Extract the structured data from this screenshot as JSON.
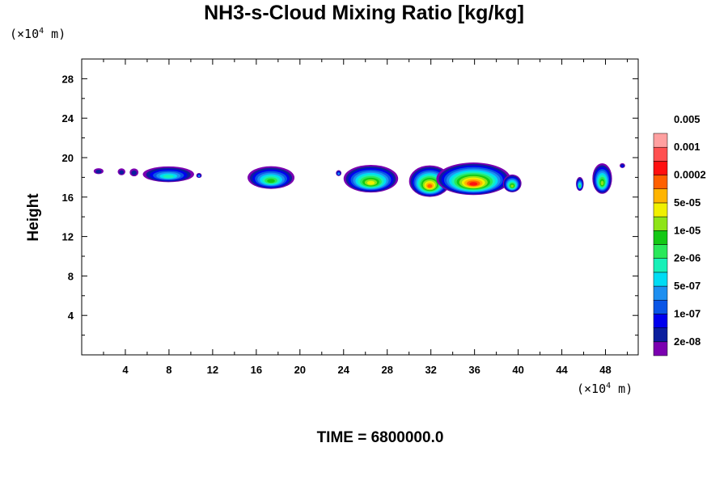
{
  "chart_data": {
    "type": "heatmap",
    "title": "NH3-s-Cloud Mixing Ratio [kg/kg]",
    "ylabel": "Height",
    "xlabel": "",
    "x_unit": "(×10⁴ m)",
    "y_unit": "(×10⁴ m)",
    "x_unit_parts": {
      "pre": "(×10",
      "exp": "4",
      "post": " m)"
    },
    "y_unit_parts": {
      "pre": "(×10",
      "exp": "4",
      "post": " m)"
    },
    "xlim": [
      0,
      51
    ],
    "ylim": [
      0,
      30
    ],
    "xticks": [
      4,
      8,
      12,
      16,
      20,
      24,
      28,
      32,
      36,
      40,
      44,
      48
    ],
    "yticks": [
      4,
      8,
      12,
      16,
      20,
      24,
      28
    ],
    "time_label": "TIME = 6800000.0",
    "colorbar": {
      "colors": [
        "#7b00b0",
        "#0c1f9e",
        "#0000ee",
        "#0a56e6",
        "#1e8ff0",
        "#00dcf4",
        "#18f0b8",
        "#2ae85a",
        "#14c814",
        "#8ee418",
        "#f0f000",
        "#ffb400",
        "#ff6000",
        "#ff1010",
        "#ff5050",
        "#ffa0a0"
      ],
      "labels": [
        "2e-08",
        "1e-07",
        "5e-07",
        "2e-06",
        "1e-05",
        "5e-05",
        "0.0002",
        "0.001",
        "0.005"
      ]
    },
    "clouds": [
      {
        "x_start": 1.1,
        "x_end": 2.0,
        "base": 18.4,
        "top": 19.0,
        "peak": 1
      },
      {
        "x_start": 3.3,
        "x_end": 4.0,
        "base": 18.3,
        "top": 19.0,
        "peak": 1
      },
      {
        "x_start": 4.4,
        "x_end": 5.2,
        "base": 18.2,
        "top": 19.0,
        "peak": 1
      },
      {
        "x_start": 5.6,
        "x_end": 10.3,
        "base": 17.7,
        "top": 19.3,
        "peak": 6
      },
      {
        "x_start": 10.5,
        "x_end": 11.0,
        "base": 18.0,
        "top": 18.5,
        "peak": 4
      },
      {
        "x_start": 15.2,
        "x_end": 19.5,
        "base": 17.1,
        "top": 19.4,
        "peak": 8
      },
      {
        "x_start": 23.3,
        "x_end": 23.8,
        "base": 18.2,
        "top": 18.8,
        "peak": 4
      },
      {
        "x_start": 24.0,
        "x_end": 29.0,
        "base": 16.8,
        "top": 19.6,
        "peak": 10
      },
      {
        "x_start": 30.0,
        "x_end": 33.8,
        "base": 16.4,
        "top": 19.6,
        "peak": 12
      },
      {
        "x_start": 32.5,
        "x_end": 39.3,
        "base": 16.6,
        "top": 19.9,
        "peak": 13
      },
      {
        "x_start": 38.6,
        "x_end": 40.3,
        "base": 16.7,
        "top": 18.5,
        "peak": 9
      },
      {
        "x_start": 45.3,
        "x_end": 46.0,
        "base": 16.8,
        "top": 18.2,
        "peak": 7
      },
      {
        "x_start": 46.8,
        "x_end": 48.6,
        "base": 16.7,
        "top": 19.8,
        "peak": 9
      },
      {
        "x_start": 49.3,
        "x_end": 49.8,
        "base": 19.0,
        "top": 19.5,
        "peak": 2
      }
    ]
  }
}
